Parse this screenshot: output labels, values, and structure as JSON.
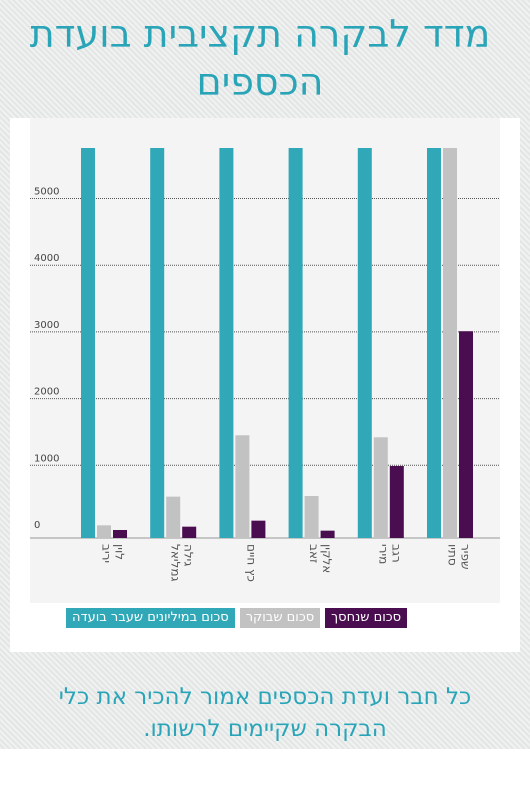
{
  "page": {
    "title": "מדד לבקרה תקציבית בועדת הכספים",
    "footer": "כל חבר ועדת הכספים אמור להכיר את כלי הבקרה שקיימים לרשותו."
  },
  "colors": {
    "teal": "#31a8b8",
    "gray": "#c2c2c2",
    "purple": "#4a0d4f",
    "accent_text": "#2aa5b8"
  },
  "chart_data": {
    "type": "bar",
    "categories": [
      "לוין יריב",
      "גילה גמליאל",
      "כץ חיים",
      "אלקין זאב",
      "רגב מירי",
      "שפיר סתיו"
    ],
    "series": [
      {
        "name": "סכום במיליונים שעבר בועדה",
        "values": [
          5900,
          5900,
          5900,
          5900,
          5900,
          5900
        ]
      },
      {
        "name": "סכום שבוקר",
        "values": [
          100,
          530,
          1450,
          540,
          1420,
          5900
        ]
      },
      {
        "name": "סכום שנחסך",
        "values": [
          30,
          80,
          170,
          20,
          990,
          3010
        ]
      }
    ],
    "yticks": [
      0,
      1000,
      2000,
      3000,
      4000,
      5000
    ],
    "ylim": [
      0,
      6000
    ],
    "grid": true,
    "legend_position": "bottom"
  }
}
